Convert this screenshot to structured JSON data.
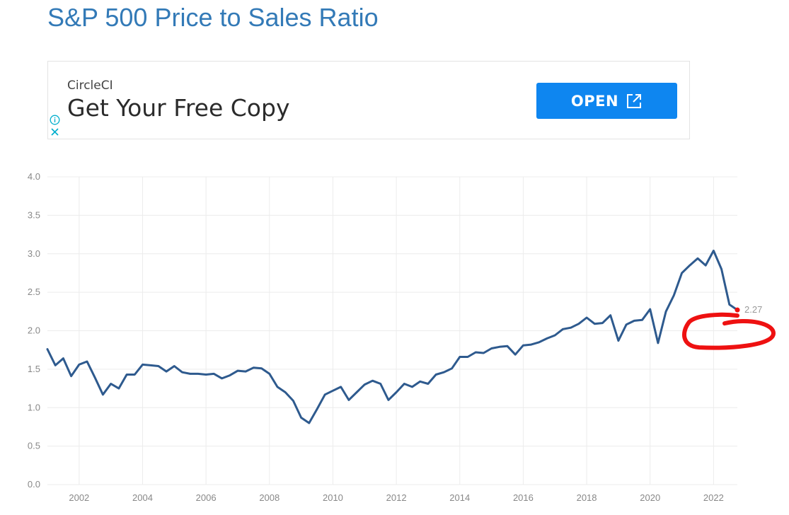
{
  "page": {
    "title": "S&P 500 Price to Sales Ratio"
  },
  "ad": {
    "brand": "CircleCI",
    "headline": "Get Your Free Copy",
    "button_label": "OPEN",
    "button_color": "#0e86f0",
    "icons": [
      "info-icon",
      "close-icon",
      "external-link-icon"
    ]
  },
  "chart_data": {
    "type": "line",
    "title": "S&P 500 Price to Sales Ratio",
    "xlabel": "",
    "ylabel": "",
    "xlim": [
      2001.0,
      2022.75
    ],
    "ylim": [
      0,
      4.0
    ],
    "y_ticks": [
      "0.0",
      "0.5",
      "1.0",
      "1.5",
      "2.0",
      "2.5",
      "3.0",
      "3.5",
      "4.0"
    ],
    "x_ticks": [
      "2002",
      "2004",
      "2006",
      "2008",
      "2010",
      "2012",
      "2014",
      "2016",
      "2018",
      "2020",
      "2022"
    ],
    "grid": true,
    "line_color": "#2e5a8e",
    "annotation_color": "#ee1111",
    "last_value_label": "2.27",
    "series": [
      {
        "x": [
          2001.0,
          2001.25,
          2001.5,
          2001.75,
          2002.0,
          2002.25,
          2002.5,
          2002.75,
          2003.0,
          2003.25,
          2003.5,
          2003.75,
          2004.0,
          2004.25,
          2004.5,
          2004.75,
          2005.0,
          2005.25,
          2005.5,
          2005.75,
          2006.0,
          2006.25,
          2006.5,
          2006.75,
          2007.0,
          2007.25,
          2007.5,
          2007.75,
          2008.0,
          2008.25,
          2008.5,
          2008.75,
          2009.0,
          2009.25,
          2009.5,
          2009.75,
          2010.0,
          2010.25,
          2010.5,
          2010.75,
          2011.0,
          2011.25,
          2011.5,
          2011.75,
          2012.0,
          2012.25,
          2012.5,
          2012.75,
          2013.0,
          2013.25,
          2013.5,
          2013.75,
          2014.0,
          2014.25,
          2014.5,
          2014.75,
          2015.0,
          2015.25,
          2015.5,
          2015.75,
          2016.0,
          2016.25,
          2016.5,
          2016.75,
          2017.0,
          2017.25,
          2017.5,
          2017.75,
          2018.0,
          2018.25,
          2018.5,
          2018.75,
          2019.0,
          2019.25,
          2019.5,
          2019.75,
          2020.0,
          2020.25,
          2020.5,
          2020.75,
          2021.0,
          2021.25,
          2021.5,
          2021.75,
          2022.0,
          2022.25,
          2022.5,
          2022.75
        ],
        "y": [
          1.76,
          1.55,
          1.64,
          1.41,
          1.56,
          1.6,
          1.39,
          1.17,
          1.31,
          1.25,
          1.43,
          1.43,
          1.56,
          1.55,
          1.54,
          1.47,
          1.54,
          1.46,
          1.44,
          1.44,
          1.43,
          1.44,
          1.38,
          1.42,
          1.48,
          1.47,
          1.52,
          1.51,
          1.44,
          1.27,
          1.2,
          1.09,
          0.87,
          0.8,
          0.98,
          1.17,
          1.22,
          1.27,
          1.1,
          1.2,
          1.3,
          1.35,
          1.31,
          1.1,
          1.2,
          1.31,
          1.27,
          1.34,
          1.31,
          1.43,
          1.46,
          1.51,
          1.66,
          1.66,
          1.72,
          1.71,
          1.77,
          1.79,
          1.8,
          1.69,
          1.81,
          1.82,
          1.85,
          1.9,
          1.94,
          2.02,
          2.04,
          2.09,
          2.17,
          2.09,
          2.1,
          2.2,
          1.87,
          2.08,
          2.13,
          2.14,
          2.28,
          1.84,
          2.25,
          2.46,
          2.75,
          2.85,
          2.94,
          2.85,
          3.04,
          2.8,
          2.34,
          2.27
        ]
      }
    ]
  }
}
